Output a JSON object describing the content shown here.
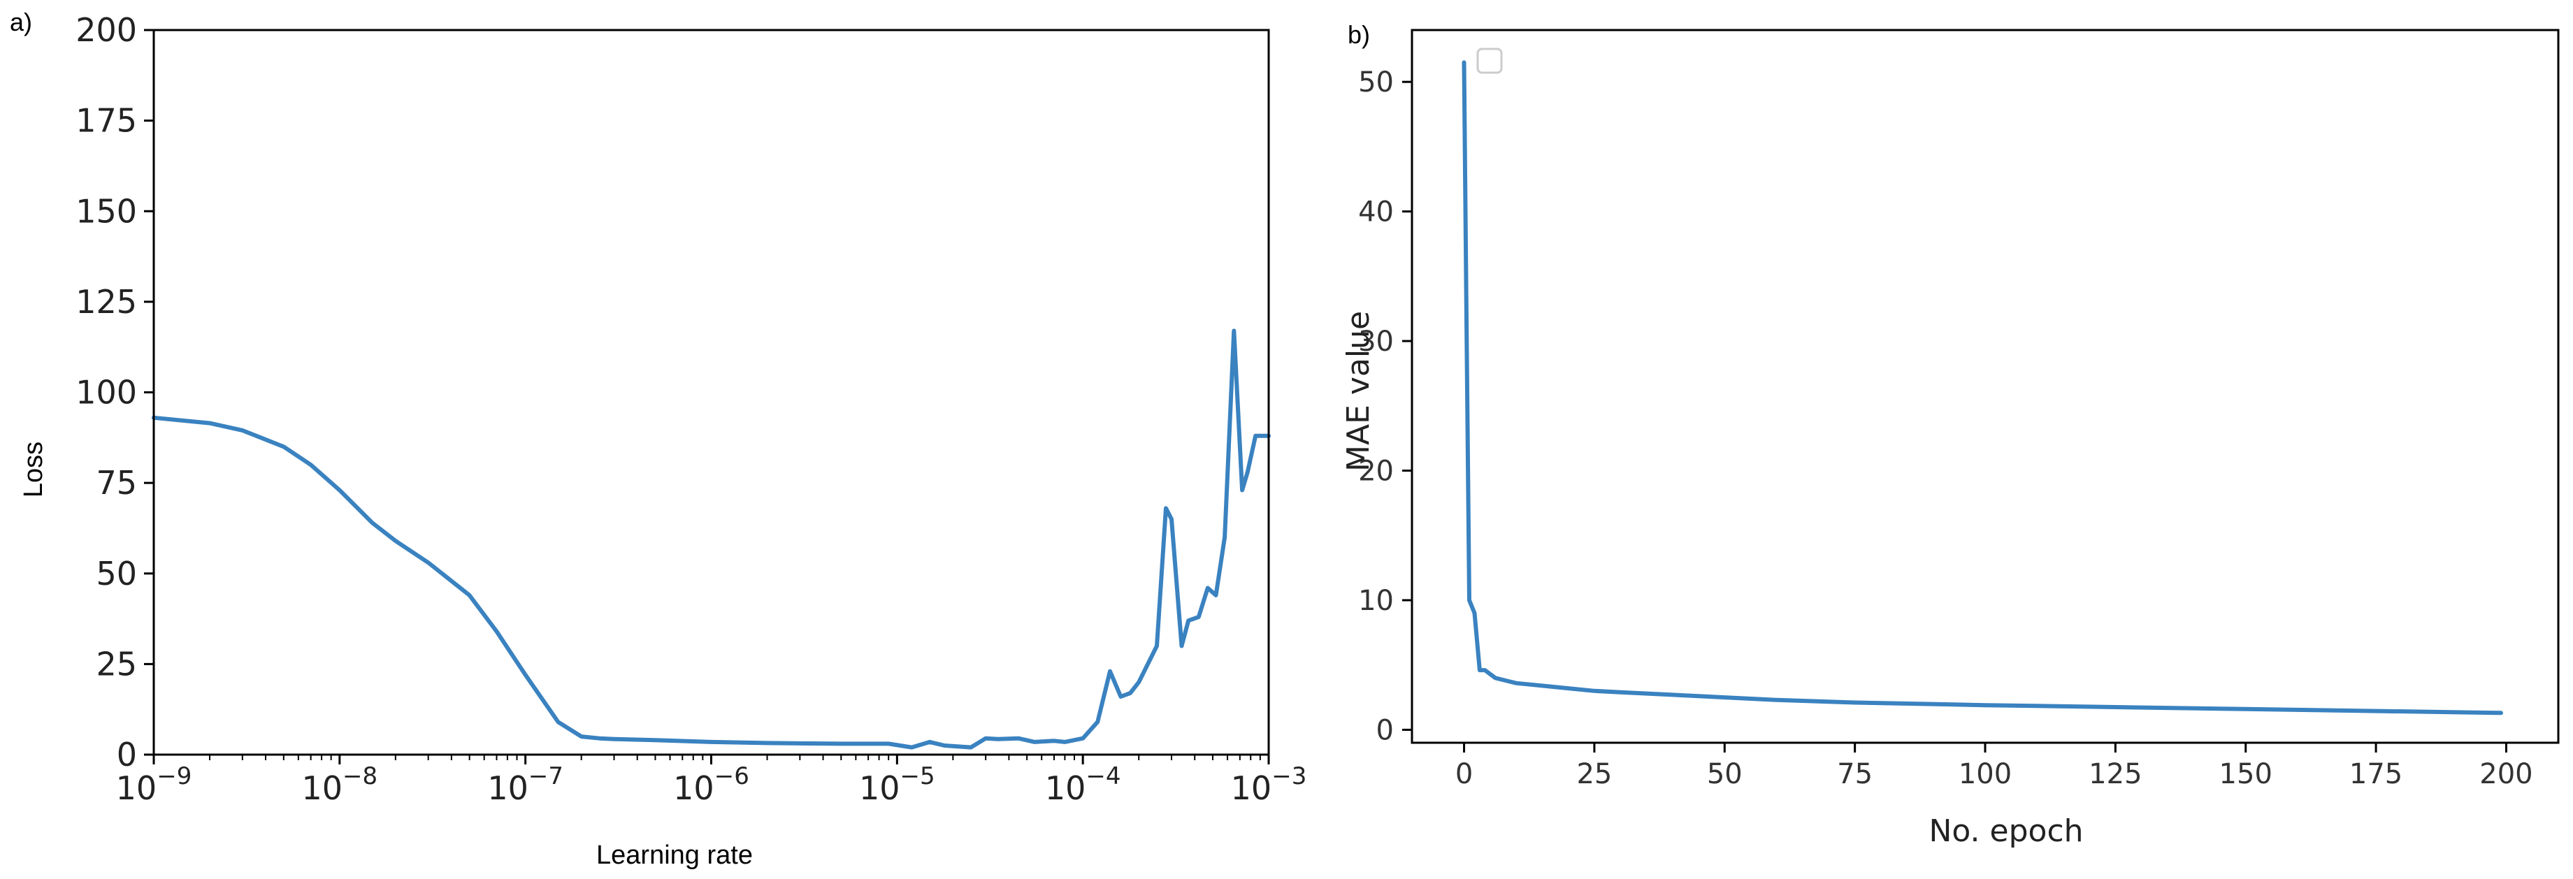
{
  "chart_data": [
    {
      "panel_label": "a)",
      "type": "line",
      "xscale": "log",
      "xlabel": "Learning rate",
      "ylabel": "Loss",
      "xlim": [
        1e-09,
        0.001
      ],
      "ylim": [
        0,
        200
      ],
      "x_tick_labels": [
        {
          "base": "10",
          "exp": "−9"
        },
        {
          "base": "10",
          "exp": "−8"
        },
        {
          "base": "10",
          "exp": "−7"
        },
        {
          "base": "10",
          "exp": "−6"
        },
        {
          "base": "10",
          "exp": "−5"
        },
        {
          "base": "10",
          "exp": "−4"
        },
        {
          "base": "10",
          "exp": "−3"
        }
      ],
      "y_ticks": [
        0,
        25,
        50,
        75,
        100,
        125,
        150,
        175,
        200
      ],
      "grid": false,
      "color": "#3a82c0",
      "series": [
        {
          "x": [
            1e-09,
            2e-09,
            3e-09,
            5e-09,
            7e-09,
            1e-08,
            1.5e-08,
            2e-08,
            3e-08,
            5e-08,
            7e-08,
            1e-07,
            1.5e-07,
            2e-07,
            2.5e-07,
            3e-07,
            5e-07,
            1e-06,
            2e-06,
            5e-06,
            9e-06,
            1.2e-05,
            1.5e-05,
            1.8e-05,
            2.5e-05,
            3e-05,
            3.5e-05,
            4.5e-05,
            5.5e-05,
            7e-05,
            8e-05,
            0.0001,
            0.00012,
            0.00014,
            0.00016,
            0.00018,
            0.0002,
            0.00025,
            0.00028,
            0.0003,
            0.00034,
            0.00037,
            0.00042,
            0.00047,
            0.00052,
            0.00058,
            0.00065,
            0.00072,
            0.00077,
            0.00085,
            0.001
          ],
          "y": [
            93,
            91.5,
            89.5,
            85,
            80,
            73,
            64,
            59,
            53,
            44,
            34,
            22,
            9,
            5,
            4.5,
            4.3,
            4,
            3.5,
            3.2,
            3,
            3,
            2,
            3.5,
            2.5,
            2,
            4.5,
            4.3,
            4.5,
            3.5,
            3.8,
            3.5,
            4.5,
            9,
            23,
            16,
            17,
            20,
            30,
            68,
            65,
            30,
            37,
            38,
            46,
            44,
            60,
            117,
            73,
            78,
            88,
            88
          ]
        }
      ]
    },
    {
      "panel_label": "b)",
      "type": "line",
      "xlabel": "No. epoch",
      "ylabel": "MAE value",
      "xlim": [
        -10,
        210
      ],
      "ylim": [
        -1,
        54
      ],
      "x_ticks": [
        0,
        25,
        50,
        75,
        100,
        125,
        150,
        175,
        200
      ],
      "y_ticks": [
        0,
        10,
        20,
        30,
        40,
        50
      ],
      "grid": false,
      "legend": "top-left, empty",
      "color": "#3a82c0",
      "series": [
        {
          "x": [
            0,
            0.5,
            1,
            2,
            3,
            4,
            5,
            6,
            8,
            10,
            15,
            20,
            25,
            30,
            40,
            50,
            60,
            75,
            100,
            125,
            150,
            175,
            199
          ],
          "y": [
            51.5,
            30,
            10,
            9,
            4.6,
            4.6,
            4.3,
            4.0,
            3.8,
            3.6,
            3.4,
            3.2,
            3.0,
            2.9,
            2.7,
            2.5,
            2.3,
            2.1,
            1.9,
            1.75,
            1.6,
            1.45,
            1.3
          ]
        }
      ]
    }
  ]
}
